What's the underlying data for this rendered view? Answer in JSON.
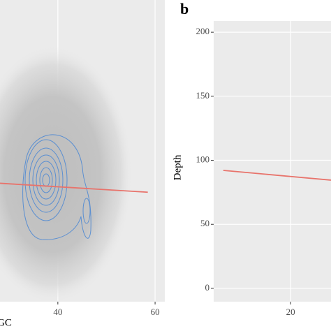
{
  "chart_data": [
    {
      "type": "line",
      "x_label": "GC",
      "x": [
        28.1,
        58.5
      ],
      "series": [
        {
          "color": "#e8736b",
          "values": [
            82,
            75
          ]
        }
      ],
      "xlim": [
        28.1,
        62.0
      ],
      "xticks": [
        40,
        60
      ],
      "ylim": [
        -10.4,
        225
      ],
      "grid": true
    },
    {
      "type": "line",
      "panel_label": "b",
      "y_label": "Depth",
      "x": [
        13.0,
        24.2
      ],
      "series": [
        {
          "color": "#e8736b",
          "values": [
            92.1,
            84.5
          ]
        }
      ],
      "xlim": [
        12,
        24.2
      ],
      "xticks": [
        20
      ],
      "ylim": [
        -10.4,
        208.8
      ],
      "yticks": [
        0,
        50,
        100,
        150,
        200
      ],
      "grid": true
    }
  ]
}
